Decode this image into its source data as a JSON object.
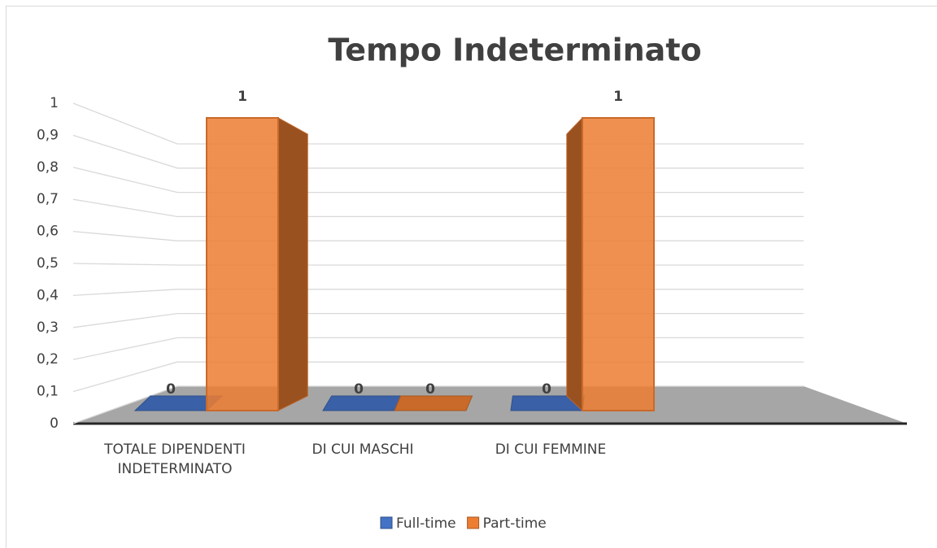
{
  "chart_data": {
    "type": "bar3d",
    "title": "Tempo Indeterminato",
    "categories": [
      "TOTALE DIPENDENTI INDETERMINATO",
      "DI CUI MASCHI",
      "DI CUI FEMMINE"
    ],
    "series": [
      {
        "name": "Full-time",
        "color": "#4472c4",
        "values": [
          0,
          0,
          0
        ]
      },
      {
        "name": "Part-time",
        "color": "#ed7d31",
        "values": [
          1,
          0,
          1
        ]
      }
    ],
    "ylim": [
      0,
      1
    ],
    "yticks": [
      0,
      {
        "value": 0.1,
        "label": "0,1"
      },
      {
        "value": 0.2,
        "label": "0,2"
      },
      {
        "value": 0.3,
        "label": "0,3"
      },
      {
        "value": 0.4,
        "label": "0,4"
      },
      {
        "value": 0.5,
        "label": "0,5"
      },
      {
        "value": 0.6,
        "label": "0,6"
      },
      {
        "value": 0.7,
        "label": "0,7"
      },
      {
        "value": 0.8,
        "label": "0,8"
      },
      {
        "value": 0.9,
        "label": "0,9"
      },
      1
    ],
    "grid": true,
    "legend": "bottom"
  }
}
